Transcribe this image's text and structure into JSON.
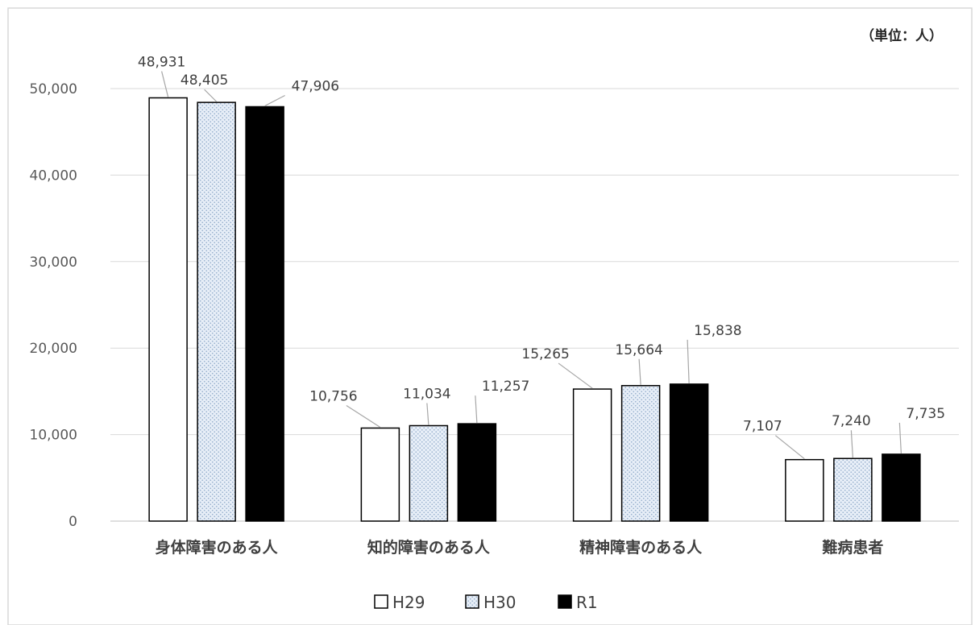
{
  "chart_data": {
    "type": "bar",
    "unit_label": "（単位：人）",
    "categories": [
      "身体障害のある人",
      "知的障害のある人",
      "精神障害のある人",
      "難病患者"
    ],
    "series": [
      {
        "name": "H29",
        "values": [
          48931,
          10756,
          15265,
          7107
        ],
        "labels": [
          "48,931",
          "10,756",
          "15,265",
          "7,107"
        ],
        "fill": "white"
      },
      {
        "name": "H30",
        "values": [
          48405,
          11034,
          15664,
          7240
        ],
        "labels": [
          "48,405",
          "11,034",
          "15,664",
          "7,240"
        ],
        "fill": "dotted-light-blue"
      },
      {
        "name": "R1",
        "values": [
          47906,
          11257,
          15838,
          7735
        ],
        "labels": [
          "47,906",
          "11,257",
          "15,838",
          "7,735"
        ],
        "fill": "black"
      }
    ],
    "yticks": [
      "0",
      "10,000",
      "20,000",
      "30,000",
      "40,000",
      "50,000"
    ],
    "ylim": [
      0,
      50000
    ],
    "grid": true,
    "legend_position": "bottom",
    "colors": {
      "h29": "#ffffff",
      "h30_base": "#e8eff8",
      "h30_dot": "#9bb3cf",
      "r1": "#000000",
      "grid": "#d9d9d9"
    }
  }
}
